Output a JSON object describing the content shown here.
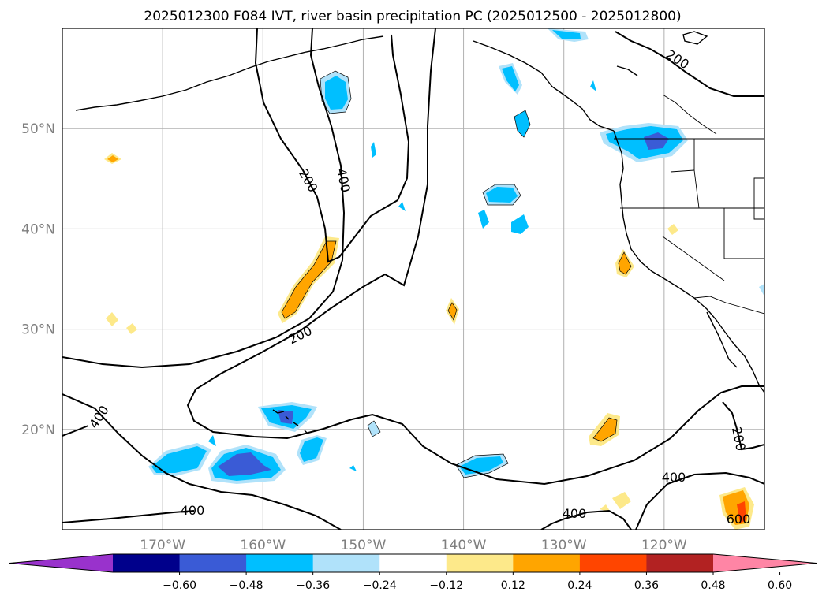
{
  "title": "2025012300 F084 IVT, river basin precipitation PC (2025012500 - 2025012800)",
  "map": {
    "lon_range": [
      -180,
      -110
    ],
    "lat_range": [
      10,
      60
    ],
    "lat_ticks": [
      {
        "value": 20,
        "label": "20°N"
      },
      {
        "value": 30,
        "label": "30°N"
      },
      {
        "value": 40,
        "label": "40°N"
      },
      {
        "value": 50,
        "label": "50°N"
      }
    ],
    "lon_ticks": [
      {
        "value": -170,
        "label": "170°W"
      },
      {
        "value": -160,
        "label": "160°W"
      },
      {
        "value": -150,
        "label": "150°W"
      },
      {
        "value": -140,
        "label": "140°W"
      },
      {
        "value": -130,
        "label": "130°W"
      },
      {
        "value": -120,
        "label": "120°W"
      }
    ],
    "gridlines": true,
    "ivt_contour_labels": [
      "200",
      "400",
      "200",
      "400",
      "400",
      "400",
      "400",
      "600",
      "200"
    ],
    "fill_colors": {
      "neg_strong": "#3a5bd6",
      "neg_mid": "#00bfff",
      "neg_weak": "#b0e2fa",
      "pos_weak": "#fde98a",
      "pos_mid": "#ffa500",
      "pos_strong": "#ff4500",
      "pos_extreme": "#b22222"
    }
  },
  "colorbar": {
    "colors": [
      "#9932cc",
      "#00008b",
      "#3a5bd6",
      "#00bfff",
      "#b0e2fa",
      "#ffffff",
      "#fde98a",
      "#ffa500",
      "#ff4500",
      "#b22222",
      "#ff85a5"
    ],
    "labels": [
      "−0.60",
      "−0.48",
      "−0.36",
      "−0.24",
      "−0.12",
      "0.12",
      "0.24",
      "0.36",
      "0.48",
      "0.60"
    ]
  }
}
